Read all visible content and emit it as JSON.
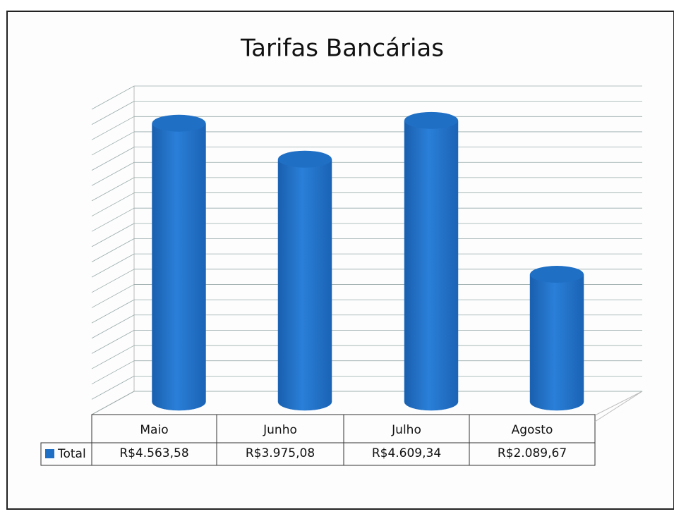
{
  "chart_data": {
    "type": "bar3d",
    "title": "Tarifas Bancárias",
    "categories": [
      "Maio",
      "Junho",
      "Julho",
      "Agosto"
    ],
    "series": [
      {
        "name": "Total",
        "color": "#1f6fc5",
        "values": [
          4563.58,
          3975.08,
          4609.34,
          2089.67
        ],
        "value_labels": [
          "R$4.563,58",
          "R$3.975,08",
          "R$4.609,34",
          "R$2.089,67"
        ]
      }
    ],
    "ylim": [
      0,
      5000
    ],
    "yticks": [
      0,
      250,
      500,
      750,
      1000,
      1250,
      1500,
      1750,
      2000,
      2250,
      2500,
      2750,
      3000,
      3250,
      3500,
      3750,
      4000,
      4250,
      4500,
      4750,
      5000
    ],
    "grid": true,
    "legend": "table"
  }
}
